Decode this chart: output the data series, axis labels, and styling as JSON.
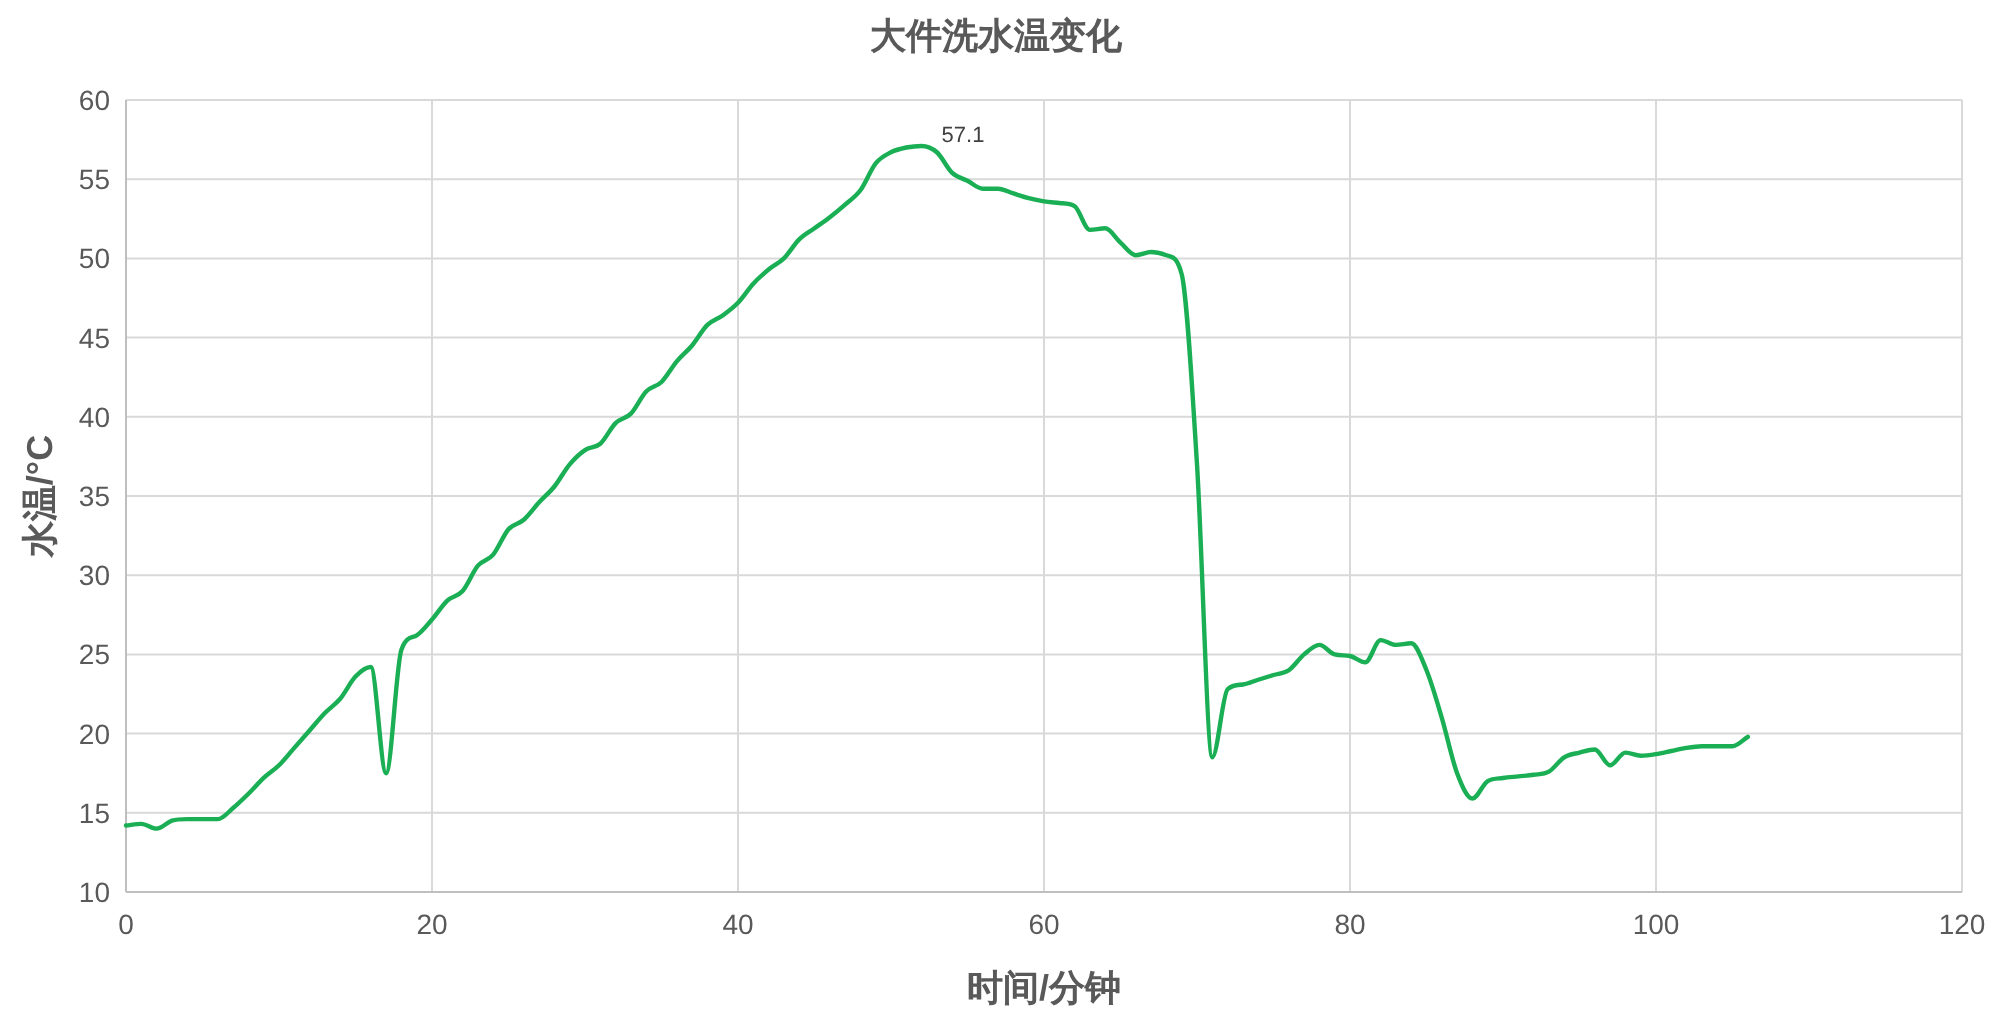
{
  "chart_data": {
    "type": "line",
    "title": "大件洗水温变化",
    "xlabel": "时间/分钟",
    "ylabel": "水温/°C",
    "x": [
      0,
      1,
      2,
      3,
      4,
      5,
      6,
      7,
      8,
      9,
      10,
      11,
      12,
      13,
      14,
      15,
      16,
      17,
      18,
      19,
      20,
      21,
      22,
      23,
      24,
      25,
      26,
      27,
      28,
      29,
      30,
      31,
      32,
      33,
      34,
      35,
      36,
      37,
      38,
      39,
      40,
      41,
      42,
      43,
      44,
      45,
      46,
      47,
      48,
      49,
      50,
      51,
      52,
      53,
      54,
      55,
      56,
      57,
      58,
      59,
      60,
      61,
      62,
      63,
      64,
      65,
      66,
      67,
      68,
      69,
      70,
      71,
      72,
      73,
      74,
      75,
      76,
      77,
      78,
      79,
      80,
      81,
      82,
      83,
      84,
      85,
      86,
      87,
      88,
      89,
      90,
      91,
      92,
      93,
      94,
      95,
      96,
      97,
      98,
      99,
      100,
      101,
      102,
      103,
      104,
      105,
      106
    ],
    "series": [
      {
        "color": "#1aaf54",
        "values": [
          14.2,
          14.3,
          14.0,
          14.5,
          14.6,
          14.6,
          14.6,
          15.3,
          16.2,
          17.2,
          18.0,
          19.1,
          20.2,
          21.3,
          22.2,
          23.6,
          24.2,
          17.5,
          25.3,
          26.2,
          27.2,
          28.4,
          29.0,
          30.6,
          31.3,
          32.9,
          33.5,
          34.6,
          35.6,
          37.0,
          37.9,
          38.3,
          39.6,
          40.2,
          41.6,
          42.2,
          43.5,
          44.5,
          45.8,
          46.4,
          47.2,
          48.4,
          49.3,
          50.0,
          51.2,
          51.9,
          52.6,
          53.4,
          54.3,
          56.0,
          56.7,
          57.0,
          57.1,
          56.7,
          55.4,
          54.9,
          54.4,
          54.4,
          54.1,
          53.8,
          53.6,
          53.5,
          53.3,
          51.8,
          51.9,
          51.0,
          50.2,
          50.4,
          50.2,
          49.0,
          37.0,
          18.5,
          22.8,
          23.1,
          23.4,
          23.7,
          24.0,
          25.0,
          25.6,
          25.0,
          24.9,
          24.5,
          25.9,
          25.6,
          25.7,
          24.0,
          21.0,
          17.5,
          15.9,
          17.0,
          17.2,
          17.3,
          17.4,
          17.6,
          18.5,
          18.8,
          19.0,
          18.0,
          18.8,
          18.6,
          18.7,
          18.9,
          19.1,
          19.2,
          19.2,
          19.2,
          19.8
        ]
      }
    ],
    "xlim": [
      0,
      120
    ],
    "ylim": [
      10,
      60
    ],
    "xticks": [
      0,
      20,
      40,
      60,
      80,
      100,
      120
    ],
    "yticks": [
      10,
      15,
      20,
      25,
      30,
      35,
      40,
      45,
      50,
      55,
      60
    ],
    "grid": true,
    "annotations": [
      {
        "text": "57.1",
        "x": 52,
        "y": 57.1
      }
    ]
  }
}
